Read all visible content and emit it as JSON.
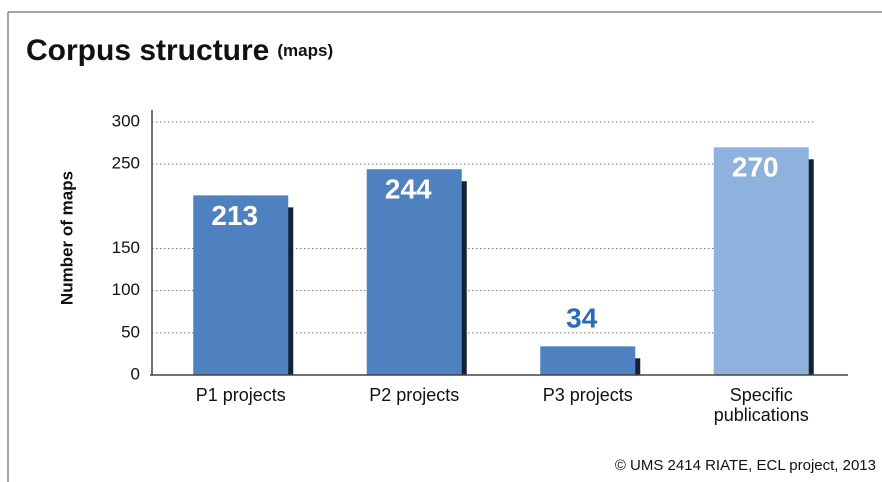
{
  "chart_data": {
    "type": "bar",
    "title": "Corpus structure",
    "subtitle": "(maps)",
    "y_label": "Number of maps",
    "categories": [
      "P1 projects",
      "P2 projects",
      "P3 projects",
      "Specific publications"
    ],
    "values": [
      213,
      244,
      34,
      270
    ],
    "colors": [
      "#4f80c0",
      "#4f80c0",
      "#4f80c0",
      "#8eb1dd"
    ],
    "label_positions": [
      "inside",
      "inside",
      "outside",
      "inside"
    ],
    "ylim": [
      0,
      300
    ],
    "yticks": [
      0,
      50,
      100,
      150,
      250,
      300
    ],
    "grid": true,
    "footer": "© UMS 2414 RIATE, ECL project, 2013"
  }
}
